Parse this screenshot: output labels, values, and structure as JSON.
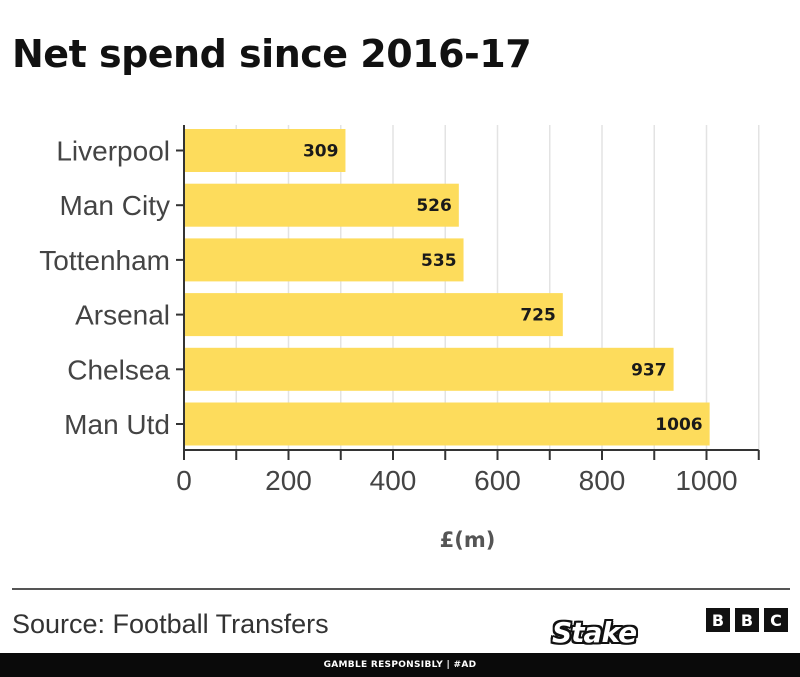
{
  "chart_data": {
    "type": "bar",
    "orientation": "horizontal",
    "title": "Net spend since 2016-17",
    "categories": [
      "Liverpool",
      "Man City",
      "Tottenham",
      "Arsenal",
      "Chelsea",
      "Man Utd"
    ],
    "values": [
      309,
      526,
      535,
      725,
      937,
      1006
    ],
    "value_labels": [
      "309",
      "526",
      "535",
      "725",
      "937",
      "1006"
    ],
    "xlabel": "£(m)",
    "ylabel": "",
    "xlim": [
      0,
      1100
    ],
    "xticks": [
      0,
      200,
      400,
      600,
      800,
      1000
    ],
    "grid": true,
    "bar_color": "#fddc5c"
  },
  "footer": {
    "source": "Source: Football Transfers",
    "brand_letters": [
      "B",
      "B",
      "C"
    ],
    "sponsor": "Stake",
    "disclaimer": "GAMBLE RESPONSIBLY | #AD"
  }
}
